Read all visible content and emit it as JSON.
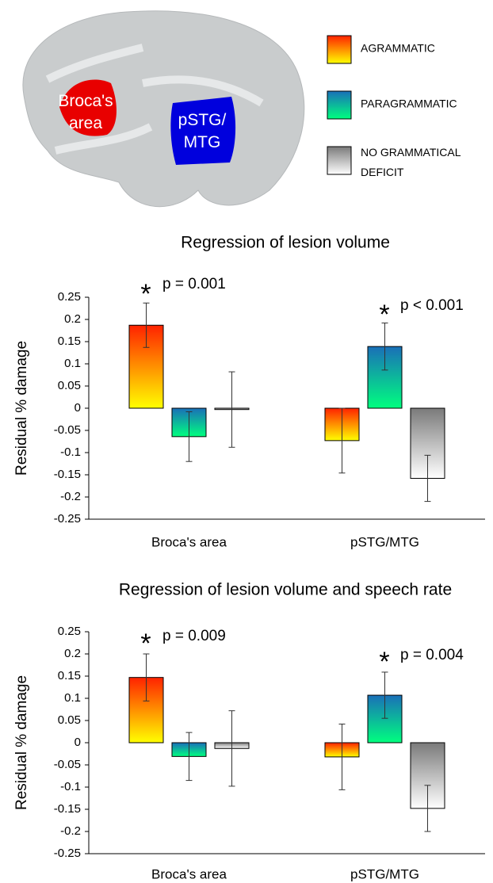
{
  "figure": {
    "brain_labels": [
      "Broca's\narea",
      "pSTG/\nMTG"
    ],
    "legend": [
      {
        "name": "AGRAMMATIC",
        "colors": [
          "#ff2200",
          "#ffff00"
        ]
      },
      {
        "name": "PARAGRAMMATIC",
        "colors": [
          "#1a6fb8",
          "#00ff7f"
        ]
      },
      {
        "name": "NO GRAMMATICAL\nDEFICIT",
        "colors": [
          "#7a7a7a",
          "#ffffff"
        ]
      }
    ]
  },
  "chart_data": [
    {
      "type": "bar",
      "title": "Regression of lesion volume",
      "ylabel": "Residual % damage",
      "categories": [
        "Broca's area",
        "pSTG/MTG"
      ],
      "series": [
        {
          "values": [
            0.187,
            -0.073
          ],
          "errors": [
            0.05,
            0.073
          ]
        },
        {
          "values": [
            -0.064,
            0.139
          ],
          "errors": [
            0.056,
            0.053
          ]
        },
        {
          "values": [
            -0.003,
            -0.158
          ],
          "errors": [
            0.085,
            0.052
          ]
        }
      ],
      "ylim": [
        -0.25,
        0.25
      ],
      "yticks": [
        0.25,
        0.2,
        0.15,
        0.1,
        0.05,
        0,
        -0.05,
        -0.1,
        -0.15,
        -0.2,
        -0.25
      ],
      "annotations": [
        {
          "marker": "*",
          "text": "p = 0.001"
        },
        {
          "marker": "*",
          "text": "p < 0.001"
        }
      ]
    },
    {
      "type": "bar",
      "title": "Regression of lesion volume and speech rate",
      "ylabel": "Residual % damage",
      "categories": [
        "Broca's area",
        "pSTG/MTG"
      ],
      "series": [
        {
          "values": [
            0.147,
            -0.032
          ],
          "errors": [
            0.053,
            0.074
          ]
        },
        {
          "values": [
            -0.031,
            0.107
          ],
          "errors": [
            0.054,
            0.052
          ]
        },
        {
          "values": [
            -0.013,
            -0.148
          ],
          "errors": [
            0.085,
            0.052
          ]
        }
      ],
      "ylim": [
        -0.25,
        0.25
      ],
      "yticks": [
        0.25,
        0.2,
        0.15,
        0.1,
        0.05,
        0,
        -0.05,
        -0.1,
        -0.15,
        -0.2,
        -0.25
      ],
      "annotations": [
        {
          "marker": "*",
          "text": "p = 0.009"
        },
        {
          "marker": "*",
          "text": "p = 0.004"
        }
      ]
    }
  ]
}
